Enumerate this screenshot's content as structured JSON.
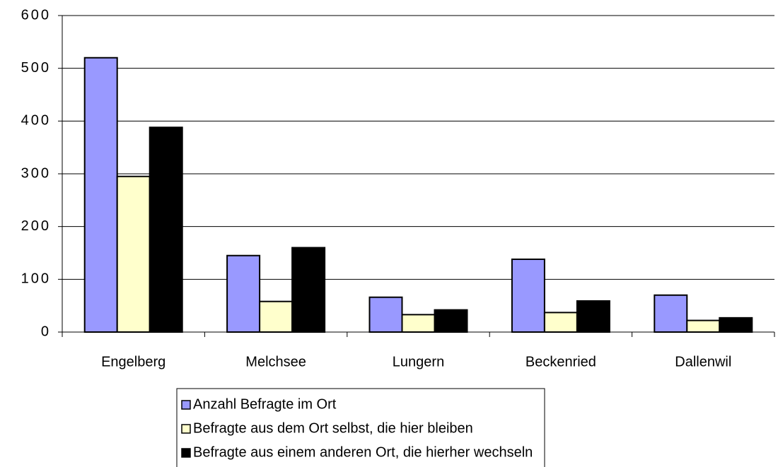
{
  "chart_data": {
    "type": "bar",
    "categories": [
      "Engelberg",
      "Melchsee",
      "Lungern",
      "Beckenried",
      "Dallenwil"
    ],
    "series": [
      {
        "name": "Anzahl Befragte im Ort",
        "color": "#9999ff",
        "values": [
          520,
          145,
          66,
          138,
          70
        ]
      },
      {
        "name": "Befragte aus dem Ort selbst, die hier bleiben",
        "color": "#ffffcc",
        "values": [
          295,
          58,
          33,
          37,
          22
        ]
      },
      {
        "name": "Befragte aus einem anderen Ort, die hierher wechseln",
        "color": "#000000",
        "values": [
          388,
          160,
          42,
          59,
          27
        ]
      }
    ],
    "ylim": [
      0,
      600
    ],
    "yticks": [
      0,
      100,
      200,
      300,
      400,
      500,
      600
    ],
    "grid": true,
    "legend": "bottom"
  }
}
